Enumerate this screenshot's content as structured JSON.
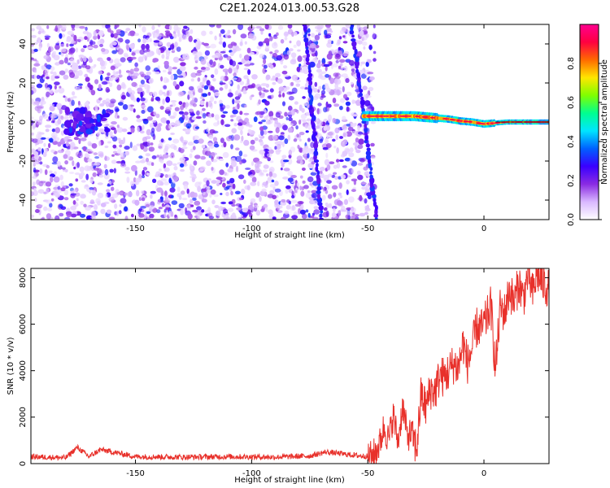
{
  "title": "C2E1.2024.013.00.53.G28",
  "colors": {
    "snr_line": "#e8302a",
    "colorbar": [
      "#ffffff",
      "#d9b8ff",
      "#8a2be2",
      "#3a00ff",
      "#0060ff",
      "#00e5ff",
      "#00ff90",
      "#7fff00",
      "#ffe600",
      "#ff6a00",
      "#ff0040",
      "#ff0090"
    ]
  },
  "chart_data": [
    {
      "type": "heatmap",
      "xlabel": "Height of straight line (km)",
      "ylabel": "Frequency (Hz)",
      "xlim": [
        -195,
        28
      ],
      "ylim": [
        -50,
        50
      ],
      "xticks": [
        -150,
        -100,
        -50,
        0
      ],
      "yticks": [
        -40,
        -20,
        0,
        20,
        40
      ],
      "colorbar": {
        "label": "Normalized spectral amplitude",
        "range": [
          0,
          1
        ],
        "ticks": [
          "0.0",
          "0.2",
          "0.4",
          "0.6",
          "0.8"
        ]
      },
      "features": {
        "noise_region_x": [
          -195,
          -50
        ],
        "clutter_band_left": {
          "x": [
            -180,
            -162
          ],
          "freq": 0
        },
        "diagonal_streak_1": {
          "x": [
            -77,
            -70
          ],
          "freq": [
            -50,
            50
          ]
        },
        "diagonal_streak_2": {
          "x": [
            -57,
            -46
          ],
          "freq": [
            -50,
            50
          ]
        },
        "signal_track": {
          "x": [
            -52,
            -45,
            -40,
            -35,
            -30,
            -25,
            -20,
            -15,
            -10,
            -5,
            0,
            5,
            10,
            15,
            20,
            25,
            28
          ],
          "freq": [
            3,
            3,
            3,
            3,
            3,
            2.5,
            2,
            1.5,
            0.5,
            0,
            -1,
            -0.5,
            0,
            0,
            0,
            0,
            0
          ]
        }
      }
    },
    {
      "type": "line",
      "xlabel": "Height of straight line (km)",
      "ylabel": "SNR (10 * v/v)",
      "xlim": [
        -195,
        28
      ],
      "ylim": [
        0,
        8400
      ],
      "xticks": [
        -150,
        -100,
        -50,
        0
      ],
      "yticks": [
        0,
        2000,
        4000,
        6000,
        8000
      ],
      "series": [
        {
          "x": [
            -195,
            -180,
            -175,
            -170,
            -165,
            -150,
            -130,
            -110,
            -90,
            -75,
            -68,
            -55,
            -48,
            -45,
            -43,
            -41,
            -39,
            -37,
            -35,
            -33,
            -31,
            -29,
            -27,
            -25,
            -23,
            -21,
            -19,
            -17,
            -15,
            -13,
            -11,
            -9,
            -7,
            -5,
            -3,
            -1,
            1,
            3,
            5,
            7,
            9,
            11,
            13,
            15,
            17,
            19,
            21,
            23,
            25,
            28
          ],
          "values": [
            300,
            250,
            700,
            300,
            600,
            300,
            280,
            300,
            280,
            330,
            500,
            350,
            300,
            800,
            1600,
            1000,
            2100,
            900,
            2500,
            1200,
            1300,
            600,
            3000,
            2400,
            3200,
            3100,
            3800,
            3700,
            4000,
            4300,
            4100,
            5200,
            4300,
            5000,
            5900,
            5800,
            6200,
            6800,
            4000,
            6700,
            6500,
            7500,
            6900,
            7800,
            7100,
            8200,
            7300,
            8200,
            7800,
            7500
          ]
        }
      ]
    }
  ]
}
